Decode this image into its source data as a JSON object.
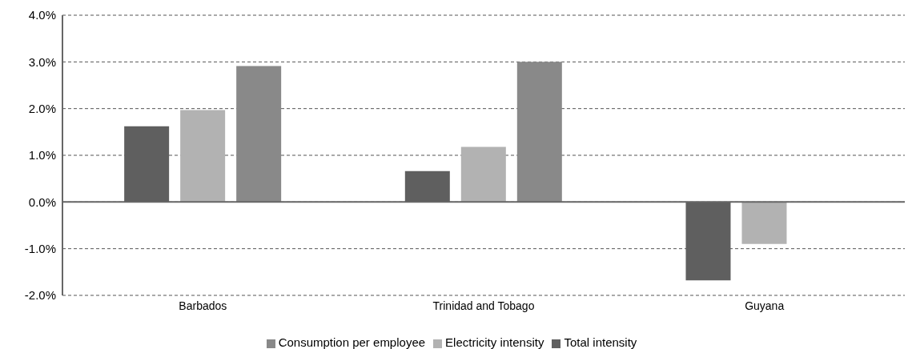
{
  "chart_data": {
    "type": "bar",
    "categories": [
      "Barbados",
      "Trinidad and Tobago",
      "Guyana"
    ],
    "series": [
      {
        "name": "Total intensity",
        "color": "#5f5f5f",
        "values": [
          1.62,
          0.66,
          -1.68
        ]
      },
      {
        "name": "Electricity intensity",
        "color": "#b2b2b2",
        "values": [
          1.97,
          1.18,
          -0.9
        ]
      },
      {
        "name": "Consumption per employee",
        "color": "#898989",
        "values": [
          2.91,
          3.0,
          null
        ]
      }
    ],
    "ylim": [
      -2,
      4
    ],
    "yticks": [
      {
        "value": -2,
        "label": "-2.0%"
      },
      {
        "value": -1,
        "label": "-1.0%"
      },
      {
        "value": 0,
        "label": "0.0%"
      },
      {
        "value": 1,
        "label": "1.0%"
      },
      {
        "value": 2,
        "label": "2.0%"
      },
      {
        "value": 3,
        "label": "3.0%"
      },
      {
        "value": 4,
        "label": "4.0%"
      }
    ],
    "grid": "y",
    "legend": "bottom"
  }
}
